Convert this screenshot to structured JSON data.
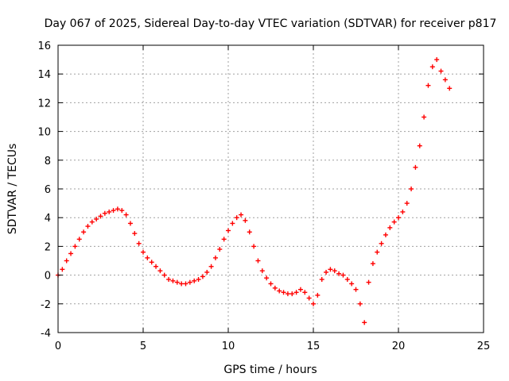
{
  "chart_data": {
    "type": "scatter",
    "title": "Day 067 of 2025, Sidereal Day-to-day VTEC variation (SDTVAR) for receiver p817",
    "xlabel": "GPS time / hours",
    "ylabel": "SDTVAR / TECUs",
    "xlim": [
      0,
      25
    ],
    "ylim": [
      -4,
      16
    ],
    "x_ticks": [
      0,
      5,
      10,
      15,
      20,
      25
    ],
    "y_ticks": [
      -4,
      -2,
      0,
      2,
      4,
      6,
      8,
      10,
      12,
      14,
      16
    ],
    "grid": true,
    "marker": "+",
    "color": "#ff0000",
    "series": [
      {
        "name": "SDTVAR",
        "x": [
          0.0,
          0.25,
          0.5,
          0.75,
          1.0,
          1.25,
          1.5,
          1.75,
          2.0,
          2.25,
          2.5,
          2.75,
          3.0,
          3.25,
          3.5,
          3.75,
          4.0,
          4.25,
          4.5,
          4.75,
          5.0,
          5.25,
          5.5,
          5.75,
          6.0,
          6.25,
          6.5,
          6.75,
          7.0,
          7.25,
          7.5,
          7.75,
          8.0,
          8.25,
          8.5,
          8.75,
          9.0,
          9.25,
          9.5,
          9.75,
          10.0,
          10.25,
          10.5,
          10.75,
          11.0,
          11.25,
          11.5,
          11.75,
          12.0,
          12.25,
          12.5,
          12.75,
          13.0,
          13.25,
          13.5,
          13.75,
          14.0,
          14.25,
          14.5,
          14.75,
          15.0,
          15.25,
          15.5,
          15.75,
          16.0,
          16.25,
          16.5,
          16.75,
          17.0,
          17.25,
          17.5,
          17.75,
          18.0,
          18.25,
          18.5,
          18.75,
          19.0,
          19.25,
          19.5,
          19.75,
          20.0,
          20.25,
          20.5,
          20.75,
          21.0,
          21.25,
          21.5,
          21.75,
          22.0,
          22.25,
          22.5,
          22.75,
          23.0
        ],
        "y": [
          0.0,
          0.4,
          1.0,
          1.5,
          2.0,
          2.5,
          3.0,
          3.4,
          3.7,
          3.9,
          4.1,
          4.3,
          4.4,
          4.5,
          4.6,
          4.5,
          4.2,
          3.6,
          2.9,
          2.2,
          1.6,
          1.2,
          0.9,
          0.6,
          0.3,
          0.0,
          -0.3,
          -0.4,
          -0.5,
          -0.6,
          -0.6,
          -0.5,
          -0.4,
          -0.3,
          -0.1,
          0.2,
          0.6,
          1.2,
          1.8,
          2.5,
          3.1,
          3.6,
          4.0,
          4.2,
          3.8,
          3.0,
          2.0,
          1.0,
          0.3,
          -0.2,
          -0.6,
          -0.9,
          -1.1,
          -1.2,
          -1.3,
          -1.3,
          -1.2,
          -1.0,
          -1.2,
          -1.6,
          -2.0,
          -1.4,
          -0.3,
          0.2,
          0.4,
          0.3,
          0.1,
          0.0,
          -0.3,
          -0.6,
          -1.0,
          -2.0,
          -3.3,
          -0.5,
          0.8,
          1.6,
          2.2,
          2.8,
          3.3,
          3.7,
          4.0,
          4.4,
          5.0,
          6.0,
          7.5,
          9.0,
          11.0,
          13.2,
          14.5,
          15.0,
          14.2,
          13.6,
          13.0
        ]
      }
    ]
  }
}
